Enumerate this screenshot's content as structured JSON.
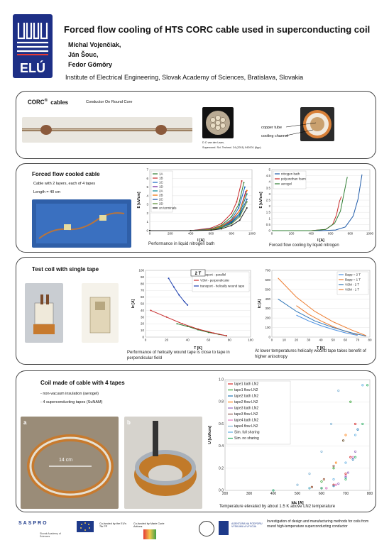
{
  "header": {
    "logo_text": "ELÚ",
    "title": "Forced flow cooling of HTS CORC cable used in superconducting coil",
    "authors": [
      "Michal Vojenčiak,",
      "Ján Šouc,",
      "Fedor Gömöry"
    ],
    "institute": "Institute of Electrical Engineering, Slovak Academy of Sciences, Bratislava, Slovakia"
  },
  "panel1": {
    "title": "CORC",
    "title_sup": "®",
    "title_tail": "cables",
    "subtitle": "Conductor On Round Core",
    "label_copper": "copper tube",
    "label_channel": "cooling channel",
    "ref1": "D C van der Laan,",
    "ref2": "Supercond. Sci. Technol. 24 (2011) 042001 (6pp)"
  },
  "panel2": {
    "title": "Forced flow cooled cable",
    "desc1": "Cable with 2 layers, each of 4 tapes",
    "desc2": "Length = 40 cm",
    "cap_left": "Performance in liquid nitrogen bath",
    "cap_right": "Forced flow cooling by liquid nitrogen"
  },
  "panel3": {
    "title": "Test coil with single tape",
    "cap_left": "Performance of helically wound tape is close to tape in perpendicular field",
    "cap_right": "At lower temperatures helically wound tape takes benefit of higher anisotropy"
  },
  "panel4": {
    "title": "Coil made of cable with 4 tapes",
    "bullet1": "- non-vacuum insulation (aerogel)",
    "bullet2": "- 4 superconducting tapes (SuNAM)",
    "photo_a": "a",
    "photo_b": "b",
    "photo_a_dim": "14 cm",
    "caption": "Temperature elevated by about 1.5 K above LN2 temperature"
  },
  "footer": {
    "logo1": "SASPRO",
    "logo1_sub": "Slovak Academy of Sciences",
    "eu_text": "",
    "cofunded": "Co-funded by the EU's 7th FP",
    "marie": "Co-funded by Marie Curie Actions",
    "agency": "AGENTÚRA NA PODPORU VÝSKUMU A VÝVOJA",
    "project": "Investigation of design and manufacturing methods for coils from round high-temperature superconducting conductor"
  },
  "chart_data": [
    {
      "type": "line",
      "xlabel": "I [A]",
      "ylabel": "E [uV/cm]",
      "xlim": [
        0,
        1000
      ],
      "ylim": [
        0,
        7
      ],
      "xticks": [
        "0",
        "200",
        "400",
        "600",
        "800",
        "1000"
      ],
      "yticks": [
        "0",
        "1",
        "2",
        "3",
        "4",
        "5",
        "6",
        "7"
      ],
      "series": [
        {
          "name": "1A",
          "color": "#2e7d32",
          "x": [
            0,
            400,
            600,
            700,
            800,
            870,
            920
          ],
          "y": [
            0,
            0,
            0.2,
            0.6,
            1.6,
            3.0,
            5.5
          ]
        },
        {
          "name": "1B",
          "color": "#c62828",
          "x": [
            0,
            400,
            600,
            700,
            800,
            850,
            900
          ],
          "y": [
            0,
            0,
            0.3,
            0.8,
            2.0,
            3.3,
            5.7
          ]
        },
        {
          "name": "1C",
          "color": "#1565c0",
          "x": [
            0,
            400,
            600,
            700,
            800,
            870,
            930
          ],
          "y": [
            0,
            0,
            0.2,
            0.5,
            1.3,
            2.6,
            5.0
          ]
        },
        {
          "name": "1D",
          "color": "#6a1b9a",
          "x": [
            0,
            400,
            600,
            700,
            800,
            880,
            940
          ],
          "y": [
            0,
            0,
            0.1,
            0.4,
            1.1,
            2.3,
            4.5
          ]
        },
        {
          "name": "2A",
          "color": "#00838f",
          "x": [
            0,
            400,
            600,
            700,
            800,
            880,
            950
          ],
          "y": [
            0,
            0,
            0.1,
            0.4,
            1.0,
            2.0,
            4.2
          ]
        },
        {
          "name": "2B",
          "color": "#ef6c00",
          "x": [
            0,
            400,
            600,
            700,
            800,
            880,
            950
          ],
          "y": [
            0,
            0,
            0.15,
            0.5,
            1.2,
            2.3,
            4.6
          ]
        },
        {
          "name": "2C",
          "color": "#0d47a1",
          "x": [
            0,
            400,
            600,
            700,
            800,
            880,
            950
          ],
          "y": [
            0,
            0,
            0.1,
            0.3,
            0.9,
            1.8,
            3.6
          ]
        },
        {
          "name": "2D",
          "color": "#558b2f",
          "x": [
            0,
            400,
            600,
            700,
            800,
            880,
            950
          ],
          "y": [
            0,
            0,
            0.1,
            0.3,
            0.8,
            1.6,
            3.3
          ]
        },
        {
          "name": "on terminals",
          "color": "#222222",
          "x": [
            0,
            400,
            600,
            700,
            800,
            880,
            950
          ],
          "y": [
            0,
            0,
            0.05,
            0.2,
            0.6,
            1.2,
            2.6
          ]
        }
      ]
    },
    {
      "type": "line",
      "xlabel": "I [A]",
      "ylabel": "E [uV/cm]",
      "xlim": [
        0,
        1000
      ],
      "ylim": [
        0,
        5
      ],
      "xticks": [
        "0",
        "200",
        "400",
        "600",
        "800",
        "1000"
      ],
      "yticks": [
        "0",
        "0.5",
        "1",
        "1.5",
        "2",
        "2.5",
        "3",
        "3.5",
        "4",
        "4.5",
        "5"
      ],
      "series": [
        {
          "name": "nitrogen bath",
          "color": "#1e5aa8",
          "x": [
            0,
            500,
            650,
            750,
            830,
            880,
            920
          ],
          "y": [
            0,
            0,
            0.05,
            0.3,
            1.2,
            2.6,
            4.6
          ]
        },
        {
          "name": "polyurethan foam",
          "color": "#c62828",
          "x": [
            0,
            400,
            550,
            620,
            660,
            690,
            710
          ],
          "y": [
            0,
            0,
            0.1,
            0.5,
            1.3,
            2.4,
            2.8
          ]
        },
        {
          "name": "aerogel",
          "color": "#2e7d32",
          "x": [
            0,
            400,
            550,
            640,
            700,
            740,
            770
          ],
          "y": [
            0,
            0,
            0.1,
            0.6,
            1.6,
            3.2,
            4.4
          ]
        }
      ]
    },
    {
      "type": "line",
      "title": "2 T",
      "xlabel": "T [K]",
      "ylabel": "Ic [A]",
      "xlim": [
        0,
        100
      ],
      "ylim": [
        0,
        100
      ],
      "xticks": [
        "0",
        "20",
        "40",
        "60",
        "80",
        "100"
      ],
      "yticks": [
        "0",
        "10",
        "20",
        "30",
        "40",
        "50",
        "60",
        "70",
        "80",
        "90",
        "100"
      ],
      "series": [
        {
          "name": "transport - parallel",
          "color": "#2e7d32",
          "x": [
            30,
            40,
            50,
            60,
            70,
            77
          ],
          "y": [
            20,
            16,
            11,
            7,
            4,
            2
          ]
        },
        {
          "name": "VSM - perpendicular",
          "color": "#c62828",
          "x": [
            5,
            20,
            35,
            50,
            65,
            77
          ],
          "y": [
            40,
            30,
            20,
            12,
            6,
            2
          ]
        },
        {
          "name": "transport - helically wound tape",
          "color": "#1e40af",
          "x": [
            22,
            27,
            32,
            37,
            40
          ],
          "y": [
            88,
            75,
            63,
            53,
            48
          ]
        }
      ]
    },
    {
      "type": "scatter",
      "xlabel": "T [K]",
      "ylabel": "Ic [A]",
      "xlim": [
        0,
        80
      ],
      "ylim": [
        0,
        700
      ],
      "xticks": [
        "0",
        "10",
        "20",
        "30",
        "40",
        "50",
        "60",
        "70",
        "80"
      ],
      "yticks": [
        "0",
        "100",
        "200",
        "300",
        "400",
        "500",
        "600",
        "700"
      ],
      "series": [
        {
          "name": "Bapp = 2 T",
          "color": "#4a90e2",
          "x": [
            20,
            30,
            40,
            50,
            60,
            70
          ],
          "y": [
            230,
            170,
            120,
            80,
            45,
            18
          ]
        },
        {
          "name": "Bapp = 1 T",
          "color": "#ed7d31",
          "x": [
            20,
            30,
            40,
            50,
            60,
            70
          ],
          "y": [
            330,
            240,
            170,
            110,
            60,
            25
          ]
        },
        {
          "name": "VSM - 2 T",
          "color": "#2e75b6",
          "x": [
            5,
            20,
            35,
            50,
            65,
            77
          ],
          "y": [
            400,
            270,
            170,
            100,
            45,
            10
          ]
        },
        {
          "name": "VSM - 1 T",
          "color": "#ed7d31",
          "x": [
            5,
            20,
            35,
            50,
            65,
            77
          ],
          "y": [
            620,
            420,
            270,
            160,
            75,
            15
          ]
        }
      ]
    },
    {
      "type": "scatter",
      "xlabel": "Idc [A]",
      "ylabel": "U [uV/cm]",
      "xlim": [
        200,
        800
      ],
      "ylim": [
        0,
        1.0
      ],
      "xticks": [
        "200",
        "300",
        "400",
        "500",
        "600",
        "700",
        "800"
      ],
      "yticks": [
        "0.0",
        "0.2",
        "0.4",
        "0.6",
        "0.8",
        "1.0"
      ],
      "series": [
        {
          "name": "tape1 bath LN2",
          "color": "#d62728",
          "x": [
            600,
            650,
            700,
            720,
            740
          ],
          "y": [
            0.02,
            0.05,
            0.15,
            0.3,
            0.6
          ]
        },
        {
          "name": "tape1 flow LN2",
          "color": "#2ca02c",
          "x": [
            550,
            600,
            650,
            690,
            720
          ],
          "y": [
            0.02,
            0.08,
            0.2,
            0.45,
            0.8
          ]
        },
        {
          "name": "tape2 bath LN2",
          "color": "#1f77b4",
          "x": [
            600,
            650,
            700,
            730,
            750
          ],
          "y": [
            0.02,
            0.04,
            0.12,
            0.28,
            0.55
          ]
        },
        {
          "name": "tape2 flow LN2",
          "color": "#ff7f0e",
          "x": [
            560,
            610,
            660,
            700
          ],
          "y": [
            0.03,
            0.1,
            0.25,
            0.5
          ]
        },
        {
          "name": "tape3 bath LN2",
          "color": "#9467bd",
          "x": [
            620,
            670,
            710,
            740
          ],
          "y": [
            0.02,
            0.06,
            0.16,
            0.35
          ]
        },
        {
          "name": "tape3 flow LN2",
          "color": "#8c564b",
          "x": [
            560,
            610,
            650,
            690
          ],
          "y": [
            0.03,
            0.1,
            0.22,
            0.45
          ]
        },
        {
          "name": "tape4 bath LN2",
          "color": "#e377c2",
          "x": [
            620,
            660,
            700,
            730
          ],
          "y": [
            0.02,
            0.05,
            0.13,
            0.3
          ]
        },
        {
          "name": "tape4 flow LN2",
          "color": "#7fb3d5",
          "x": [
            500,
            550,
            600,
            640,
            670
          ],
          "y": [
            0.05,
            0.15,
            0.35,
            0.6,
            0.9
          ]
        },
        {
          "name": "Sim. full sharing",
          "color": "#5dade2",
          "x": [
            400,
            550,
            650,
            700,
            740,
            770
          ],
          "y": [
            0,
            0.02,
            0.1,
            0.25,
            0.5,
            0.95
          ]
        },
        {
          "name": "Sim. no sharing",
          "color": "#27ae60",
          "x": [
            400,
            600,
            700,
            740,
            770,
            790
          ],
          "y": [
            0,
            0.02,
            0.1,
            0.3,
            0.6,
            0.95
          ]
        }
      ]
    }
  ]
}
